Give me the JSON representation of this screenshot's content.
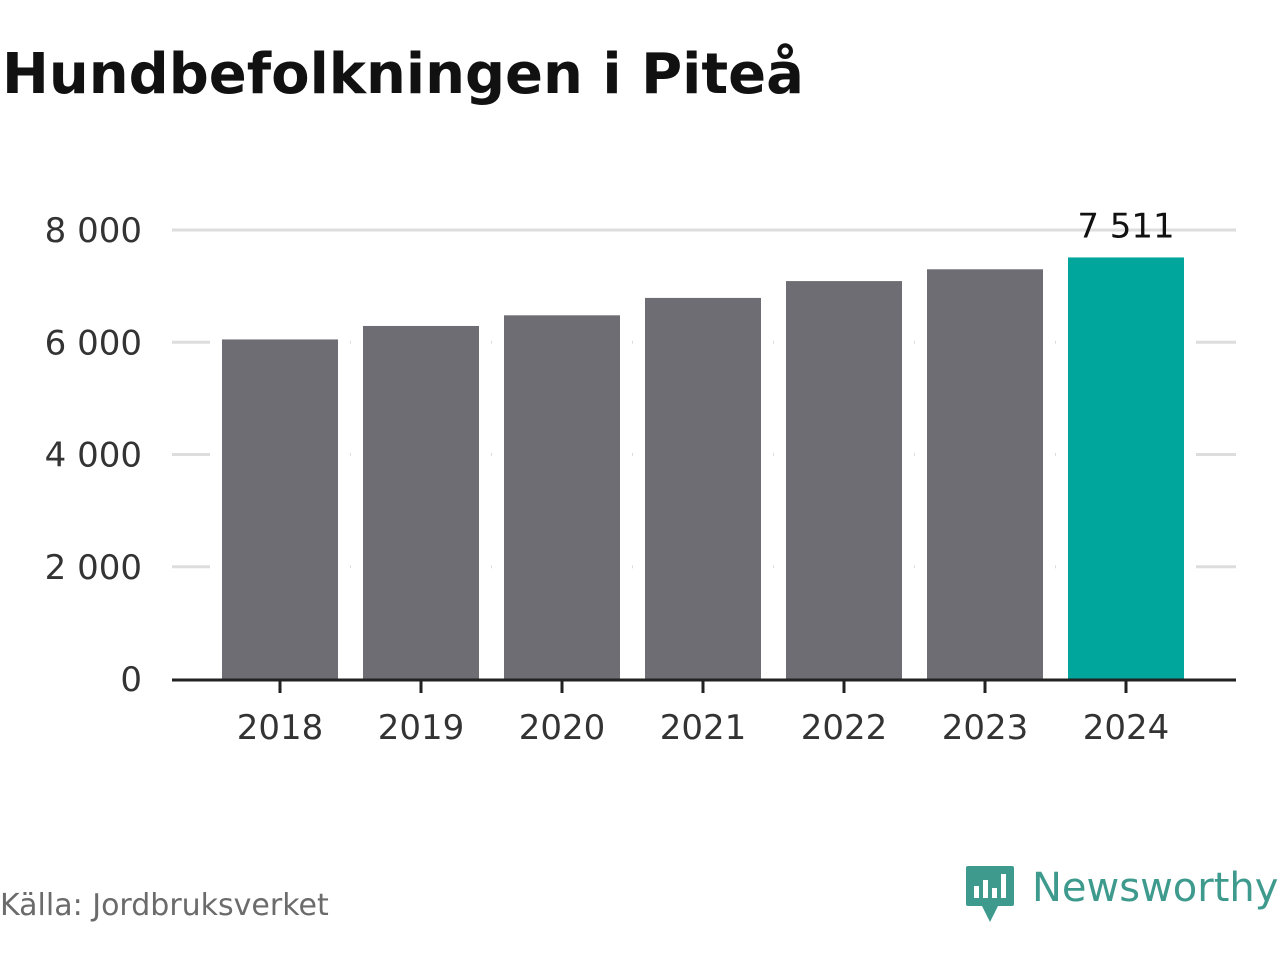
{
  "title": "Hundbefolkningen i Piteå",
  "source": "Källa: Jordbruksverket",
  "brand": {
    "name": "Newsworthy",
    "color": "#3d9a8d"
  },
  "chart_data": {
    "type": "bar",
    "categories": [
      "2018",
      "2019",
      "2020",
      "2021",
      "2022",
      "2023",
      "2024"
    ],
    "values": [
      6050,
      6290,
      6480,
      6790,
      7090,
      7300,
      7511
    ],
    "ylim": [
      0,
      8000
    ],
    "yticks": [
      0,
      2000,
      4000,
      6000,
      8000
    ],
    "ytick_labels": [
      "0",
      "2 000",
      "4 000",
      "6 000",
      "8 000"
    ],
    "data_labels": [
      {
        "index": 6,
        "text": "7 511"
      }
    ],
    "xlabel": "",
    "ylabel": "",
    "grid": true,
    "colors": {
      "bar": "#6e6d73",
      "highlight": "#00a59b",
      "grid": "#dddddd",
      "axis": "#222222"
    },
    "highlight_index": 6
  }
}
